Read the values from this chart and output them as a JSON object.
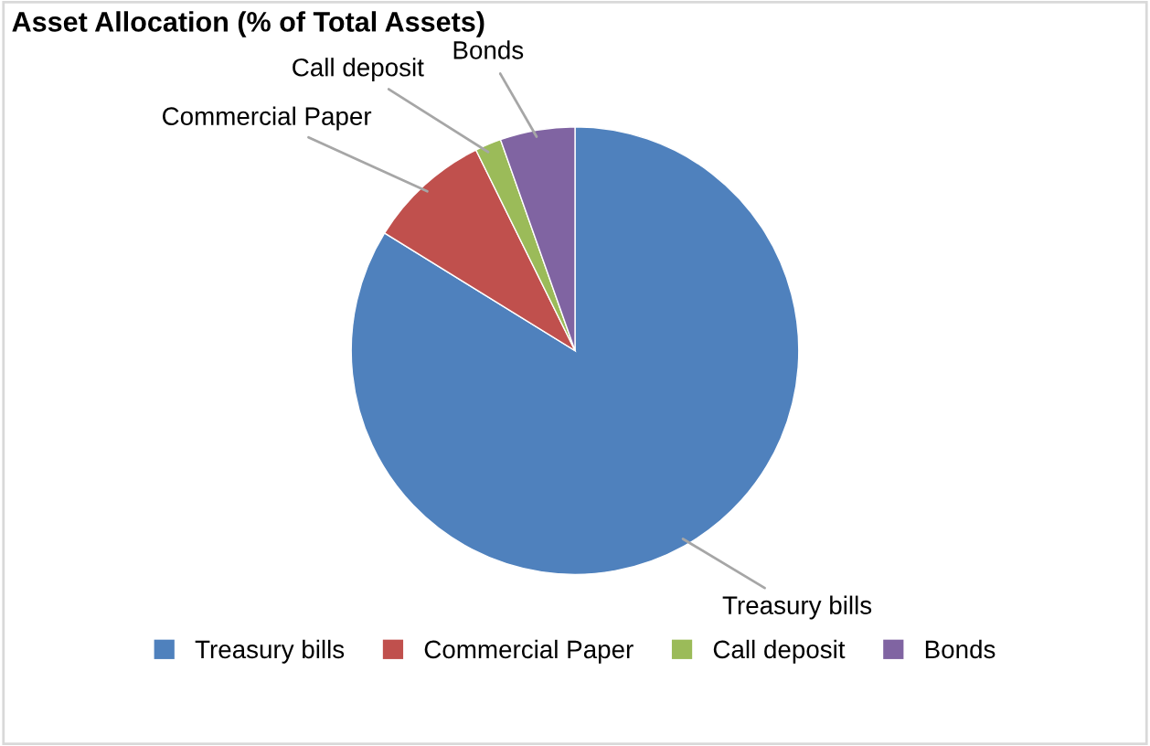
{
  "chart_data": {
    "type": "pie",
    "title": "Asset Allocation (% of Total Assets)",
    "categories": [
      "Treasury bills",
      "Commercial Paper",
      "Call deposit",
      "Bonds"
    ],
    "values": [
      83.8,
      8.9,
      1.9,
      5.4
    ],
    "colors": [
      "#4f81bd",
      "#c0504d",
      "#9bbb59",
      "#8064a2"
    ],
    "legend": "bottom"
  }
}
